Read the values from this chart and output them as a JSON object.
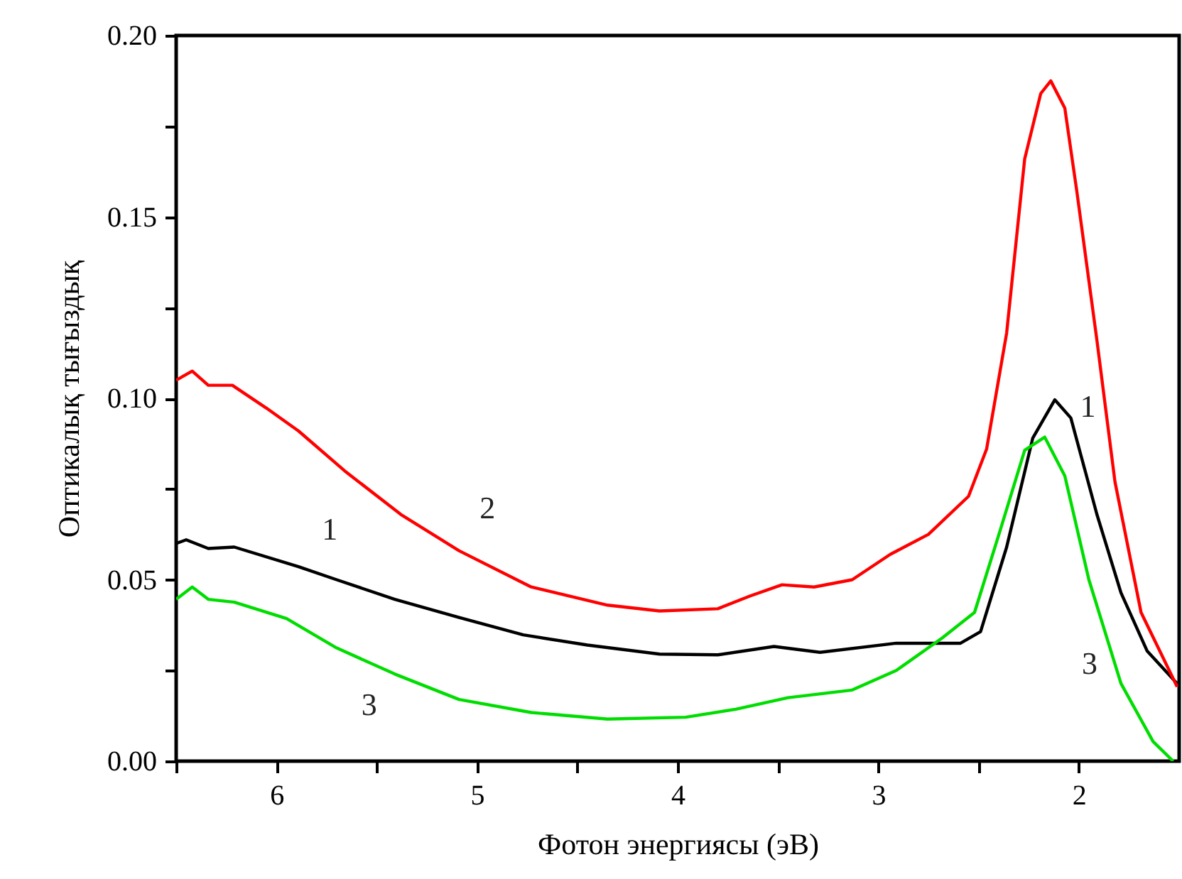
{
  "chart_data": {
    "type": "line",
    "xlabel": "Фотон энергиясы (эВ)",
    "ylabel": "Оптикалық тығыздық",
    "xlim": [
      6.5,
      1.5
    ],
    "ylim": [
      0,
      0.2
    ],
    "xticks": [
      {
        "value": 6.5,
        "label": null
      },
      6,
      {
        "value": 5.5,
        "label": null
      },
      5,
      {
        "value": 4.5,
        "label": null
      },
      4,
      {
        "value": 3.5,
        "label": null
      },
      3,
      {
        "value": 2.5,
        "label": null
      },
      2
    ],
    "yticks": [
      {
        "value": 0,
        "label": "0.00"
      },
      {
        "value": 0.025,
        "label": null
      },
      {
        "value": 0.05,
        "label": "0.05"
      },
      {
        "value": 0.075,
        "label": null
      },
      {
        "value": 0.1,
        "label": "0.10"
      },
      {
        "value": 0.125,
        "label": null
      },
      {
        "value": 0.15,
        "label": "0.15"
      },
      {
        "value": 0.175,
        "label": null
      },
      {
        "value": 0.2,
        "label": "0.20"
      }
    ],
    "grid": false,
    "marker": "none",
    "line_style": "solid",
    "series": [
      {
        "name": "1",
        "color": "#000000",
        "x": [
          6.5,
          6.45,
          6.34,
          6.21,
          5.89,
          5.7,
          5.41,
          5.09,
          4.77,
          4.45,
          4.09,
          3.8,
          3.52,
          3.29,
          2.91,
          2.59,
          2.49,
          2.36,
          2.23,
          2.12,
          2.04,
          1.91,
          1.79,
          1.66,
          1.51
        ],
        "values": [
          0.06,
          0.061,
          0.0586,
          0.059,
          0.0536,
          0.05,
          0.0446,
          0.0396,
          0.0348,
          0.032,
          0.0295,
          0.0293,
          0.0316,
          0.03,
          0.0325,
          0.0325,
          0.0357,
          0.059,
          0.089,
          0.0996,
          0.0946,
          0.068,
          0.0464,
          0.0304,
          0.0214
        ]
      },
      {
        "name": "2",
        "color": "#ff0000",
        "x": [
          6.5,
          6.42,
          6.34,
          6.22,
          6.05,
          5.89,
          5.66,
          5.38,
          5.09,
          4.73,
          4.35,
          4.09,
          3.8,
          3.64,
          3.48,
          3.32,
          3.13,
          2.94,
          2.75,
          2.55,
          2.46,
          2.36,
          2.27,
          2.19,
          2.14,
          2.07,
          2.01,
          1.91,
          1.82,
          1.69,
          1.51
        ],
        "values": [
          0.105,
          0.1075,
          0.1036,
          0.1036,
          0.0973,
          0.091,
          0.08,
          0.068,
          0.058,
          0.048,
          0.043,
          0.0414,
          0.042,
          0.0455,
          0.0486,
          0.048,
          0.05,
          0.057,
          0.0625,
          0.073,
          0.086,
          0.118,
          0.166,
          0.184,
          0.1875,
          0.18,
          0.157,
          0.116,
          0.077,
          0.041,
          0.0205
        ]
      },
      {
        "name": "3",
        "color": "#00dd00",
        "x": [
          6.5,
          6.42,
          6.34,
          6.21,
          5.95,
          5.7,
          5.41,
          5.09,
          4.73,
          4.35,
          3.96,
          3.71,
          3.45,
          3.13,
          2.91,
          2.68,
          2.52,
          2.39,
          2.27,
          2.17,
          2.07,
          1.95,
          1.79,
          1.63,
          1.53
        ],
        "values": [
          0.0446,
          0.048,
          0.0446,
          0.0438,
          0.0393,
          0.0312,
          0.024,
          0.017,
          0.0134,
          0.0116,
          0.0121,
          0.0143,
          0.0175,
          0.0196,
          0.025,
          0.034,
          0.041,
          0.064,
          0.0857,
          0.0893,
          0.0786,
          0.05,
          0.0214,
          0.0054,
          0.0
        ]
      }
    ]
  }
}
